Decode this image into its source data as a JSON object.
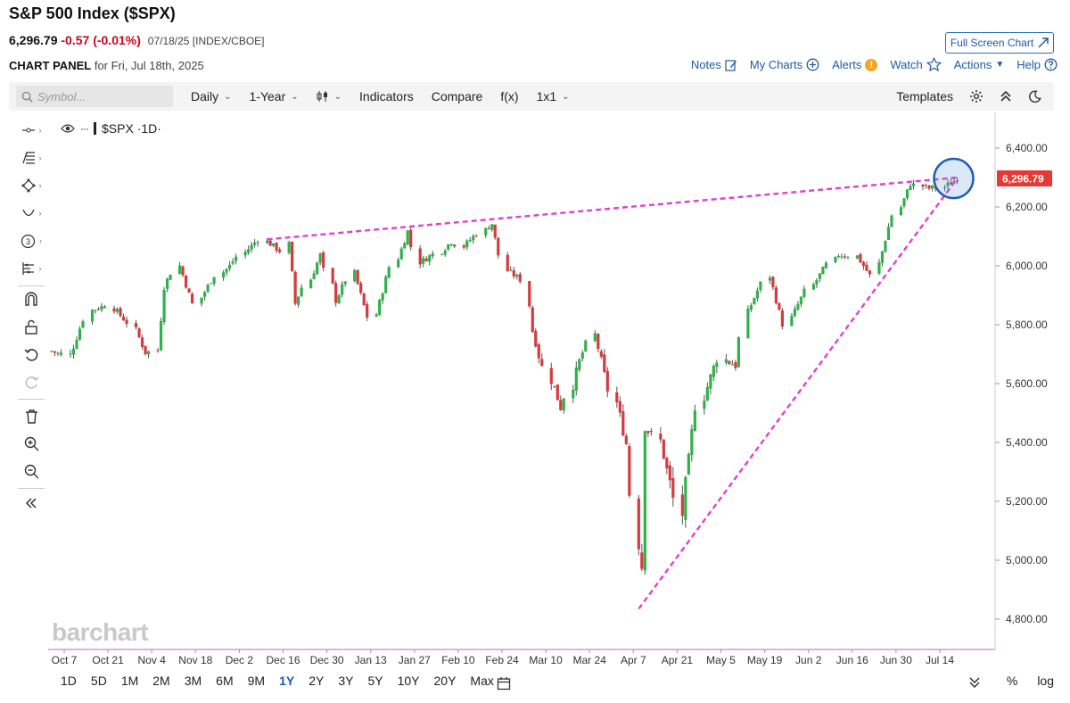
{
  "header": {
    "title": "S&P 500 Index ($SPX)",
    "price": "6,296.79",
    "change": "-0.57 (-0.01%)",
    "meta": "07/18/25 [INDEX/CBOE]",
    "panel_label": "CHART PANEL",
    "panel_for": "for Fri, Jul 18th, 2025",
    "full_screen": "Full Screen Chart"
  },
  "actions": {
    "notes": "Notes",
    "my_charts": "My Charts",
    "alerts": "Alerts",
    "watch": "Watch",
    "actions": "Actions",
    "help": "Help"
  },
  "toolbar": {
    "search_placeholder": "Symbol...",
    "interval": "Daily",
    "period": "1-Year",
    "indicators": "Indicators",
    "compare": "Compare",
    "fx": "f(x)",
    "layout": "1x1",
    "templates": "Templates"
  },
  "series_label": "$SPX ·1D·",
  "watermark": "barchart",
  "last_price_tag": "6,296.79",
  "colors": {
    "up": "#2fb24a",
    "down": "#d8393d",
    "trend": "#e040d0",
    "accent": "#1e5aa8",
    "price_tag": "#e53935"
  },
  "ranges": [
    "1D",
    "5D",
    "1M",
    "2M",
    "3M",
    "6M",
    "9M",
    "1Y",
    "2Y",
    "3Y",
    "5Y",
    "10Y",
    "20Y",
    "Max"
  ],
  "active_range": "1Y",
  "bottom_right": [
    "%",
    "log"
  ],
  "chart_data": {
    "type": "candlestick",
    "ylim": [
      4750,
      6500
    ],
    "y_ticks": [
      4800,
      5000,
      5200,
      5400,
      5600,
      5800,
      6000,
      6200,
      6400
    ],
    "y_tick_labels": [
      "4,800.00",
      "5,000.00",
      "5,200.00",
      "5,400.00",
      "5,600.00",
      "5,800.00",
      "6,000.00",
      "6,200.00",
      "6,400.00"
    ],
    "x_tick_labels": [
      "Oct 7",
      "Oct 21",
      "Nov 4",
      "Nov 18",
      "Dec 2",
      "Dec 16",
      "Dec 30",
      "Jan 13",
      "Jan 27",
      "Feb 10",
      "Feb 24",
      "Mar 10",
      "Mar 24",
      "Apr 7",
      "Apr 21",
      "May 5",
      "May 19",
      "Jun 2",
      "Jun 16",
      "Jun 30",
      "Jul 14"
    ],
    "close_path": [
      {
        "date": "2024-10-01",
        "close": 5710
      },
      {
        "date": "2024-10-07",
        "close": 5695
      },
      {
        "date": "2024-10-14",
        "close": 5850
      },
      {
        "date": "2024-10-18",
        "close": 5865
      },
      {
        "date": "2024-10-21",
        "close": 5855
      },
      {
        "date": "2024-10-25",
        "close": 5808
      },
      {
        "date": "2024-10-31",
        "close": 5705
      },
      {
        "date": "2024-11-04",
        "close": 5712
      },
      {
        "date": "2024-11-06",
        "close": 5929
      },
      {
        "date": "2024-11-11",
        "close": 6001
      },
      {
        "date": "2024-11-15",
        "close": 5870
      },
      {
        "date": "2024-11-18",
        "close": 5893
      },
      {
        "date": "2024-11-22",
        "close": 5969
      },
      {
        "date": "2024-11-27",
        "close": 6000
      },
      {
        "date": "2024-12-02",
        "close": 6047
      },
      {
        "date": "2024-12-06",
        "close": 6090
      },
      {
        "date": "2024-12-13",
        "close": 6051
      },
      {
        "date": "2024-12-16",
        "close": 6074
      },
      {
        "date": "2024-12-18",
        "close": 5872
      },
      {
        "date": "2024-12-26",
        "close": 6037
      },
      {
        "date": "2024-12-31",
        "close": 5882
      },
      {
        "date": "2025-01-06",
        "close": 5975
      },
      {
        "date": "2025-01-10",
        "close": 5827
      },
      {
        "date": "2025-01-13",
        "close": 5836
      },
      {
        "date": "2025-01-17",
        "close": 5996
      },
      {
        "date": "2025-01-23",
        "close": 6118
      },
      {
        "date": "2025-01-27",
        "close": 6012
      },
      {
        "date": "2025-01-31",
        "close": 6040
      },
      {
        "date": "2025-02-06",
        "close": 6083
      },
      {
        "date": "2025-02-10",
        "close": 6066
      },
      {
        "date": "2025-02-19",
        "close": 6144
      },
      {
        "date": "2025-02-24",
        "close": 5983
      },
      {
        "date": "2025-02-28",
        "close": 5954
      },
      {
        "date": "2025-03-04",
        "close": 5778
      },
      {
        "date": "2025-03-10",
        "close": 5614
      },
      {
        "date": "2025-03-13",
        "close": 5521
      },
      {
        "date": "2025-03-19",
        "close": 5675
      },
      {
        "date": "2025-03-24",
        "close": 5767
      },
      {
        "date": "2025-03-28",
        "close": 5580
      },
      {
        "date": "2025-04-03",
        "close": 5396
      },
      {
        "date": "2025-04-07",
        "close": 5062
      },
      {
        "date": "2025-04-08",
        "close": 4982
      },
      {
        "date": "2025-04-09",
        "close": 5456
      },
      {
        "date": "2025-04-14",
        "close": 5405
      },
      {
        "date": "2025-04-21",
        "close": 5158
      },
      {
        "date": "2025-04-25",
        "close": 5525
      },
      {
        "date": "2025-05-02",
        "close": 5686
      },
      {
        "date": "2025-05-08",
        "close": 5664
      },
      {
        "date": "2025-05-12",
        "close": 5844
      },
      {
        "date": "2025-05-19",
        "close": 5964
      },
      {
        "date": "2025-05-23",
        "close": 5802
      },
      {
        "date": "2025-06-02",
        "close": 5935
      },
      {
        "date": "2025-06-10",
        "close": 6038
      },
      {
        "date": "2025-06-16",
        "close": 6033
      },
      {
        "date": "2025-06-20",
        "close": 5967
      },
      {
        "date": "2025-06-27",
        "close": 6173
      },
      {
        "date": "2025-07-03",
        "close": 6279
      },
      {
        "date": "2025-07-09",
        "close": 6263
      },
      {
        "date": "2025-07-14",
        "close": 6268
      },
      {
        "date": "2025-07-18",
        "close": 6296.79
      }
    ],
    "trendlines": [
      {
        "from": {
          "date": "2024-12-09",
          "value": 6090
        },
        "to": {
          "date": "2025-07-18",
          "value": 6300
        }
      },
      {
        "from": {
          "date": "2025-04-07",
          "value": 4835
        },
        "to": {
          "date": "2025-07-18",
          "value": 6296.79
        }
      }
    ],
    "last_price": 6296.79
  }
}
